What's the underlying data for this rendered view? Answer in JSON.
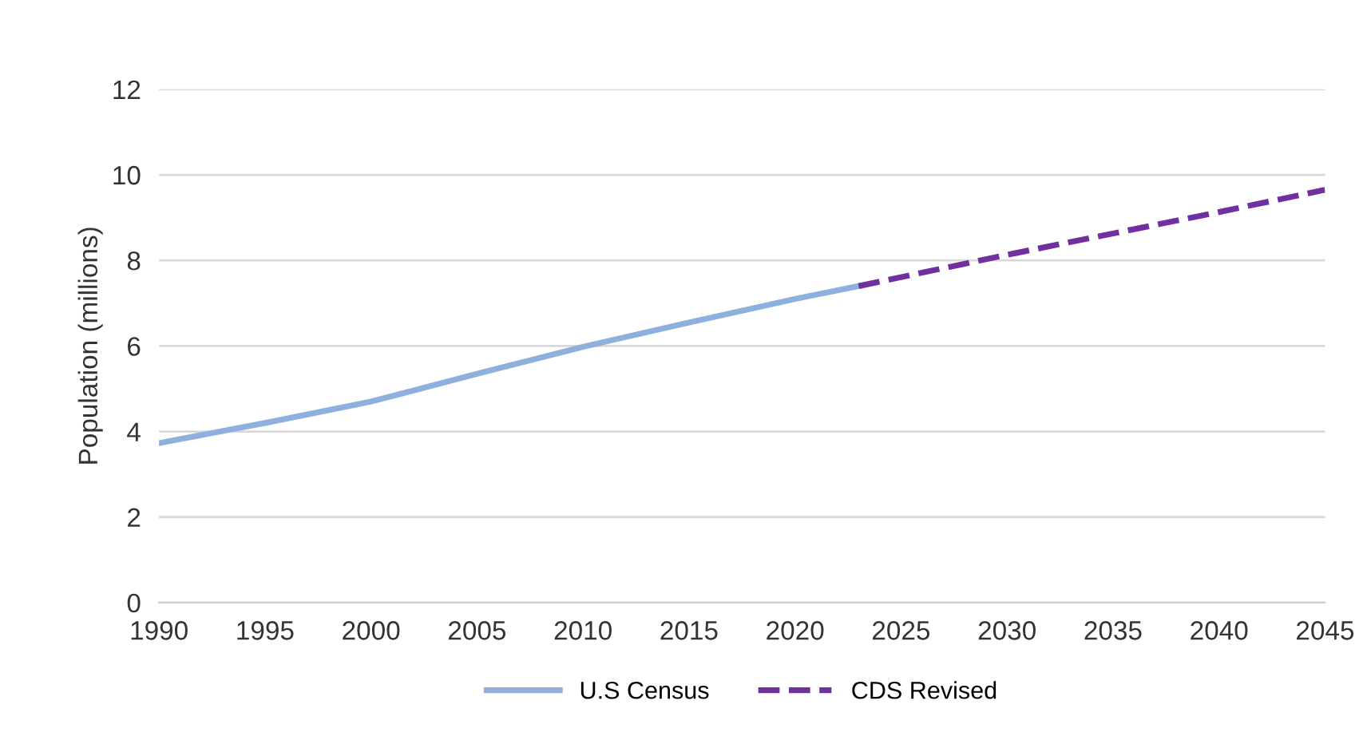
{
  "chart_data": {
    "type": "line",
    "ylabel": "Population (millions)",
    "series": [
      {
        "name": "U.S Census",
        "color": "#8eb0dc",
        "x": [
          1990,
          1995,
          2000,
          2005,
          2010,
          2015,
          2020,
          2023
        ],
        "values": [
          3.73,
          4.2,
          4.7,
          5.35,
          5.98,
          6.55,
          7.1,
          7.4
        ],
        "line_style": "solid"
      },
      {
        "name": "CDS Revised",
        "color": "#7030a0",
        "x": [
          2023,
          2030,
          2035,
          2040,
          2045
        ],
        "values": [
          7.4,
          8.13,
          8.63,
          9.13,
          9.65
        ],
        "line_style": "dashed"
      }
    ],
    "xlim": [
      1990,
      2045
    ],
    "xticks": [
      1990,
      1995,
      2000,
      2005,
      2010,
      2015,
      2020,
      2025,
      2030,
      2035,
      2040,
      2045
    ],
    "ylim": [
      0,
      12
    ],
    "yticks": [
      0,
      2,
      4,
      6,
      8,
      10,
      12
    ],
    "grid": "y",
    "legend": "bottom",
    "marker": "none"
  }
}
